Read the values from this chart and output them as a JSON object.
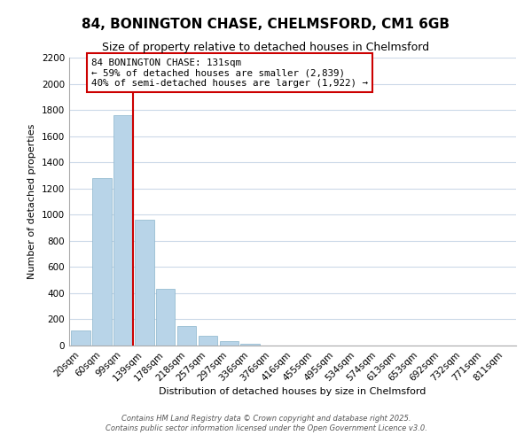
{
  "title": "84, BONINGTON CHASE, CHELMSFORD, CM1 6GB",
  "subtitle": "Size of property relative to detached houses in Chelmsford",
  "xlabel": "Distribution of detached houses by size in Chelmsford",
  "ylabel": "Number of detached properties",
  "bar_labels": [
    "20sqm",
    "60sqm",
    "99sqm",
    "139sqm",
    "178sqm",
    "218sqm",
    "257sqm",
    "297sqm",
    "336sqm",
    "376sqm",
    "416sqm",
    "455sqm",
    "495sqm",
    "534sqm",
    "574sqm",
    "613sqm",
    "653sqm",
    "692sqm",
    "732sqm",
    "771sqm",
    "811sqm"
  ],
  "bar_values": [
    115,
    1280,
    1760,
    960,
    430,
    150,
    75,
    35,
    15,
    0,
    0,
    0,
    0,
    0,
    0,
    0,
    0,
    0,
    0,
    0,
    0
  ],
  "bar_color": "#b8d4e8",
  "bar_edge_color": "#8ab4cc",
  "ylim": [
    0,
    2200
  ],
  "yticks": [
    0,
    200,
    400,
    600,
    800,
    1000,
    1200,
    1400,
    1600,
    1800,
    2000,
    2200
  ],
  "vline_color": "#cc0000",
  "annotation_line1": "84 BONINGTON CHASE: 131sqm",
  "annotation_line2": "← 59% of detached houses are smaller (2,839)",
  "annotation_line3": "40% of semi-detached houses are larger (1,922) →",
  "footer_line1": "Contains HM Land Registry data © Crown copyright and database right 2025.",
  "footer_line2": "Contains public sector information licensed under the Open Government Licence v3.0.",
  "background_color": "#ffffff",
  "grid_color": "#ccd9e8",
  "title_fontsize": 11,
  "subtitle_fontsize": 9,
  "axis_label_fontsize": 8,
  "tick_fontsize": 7.5
}
